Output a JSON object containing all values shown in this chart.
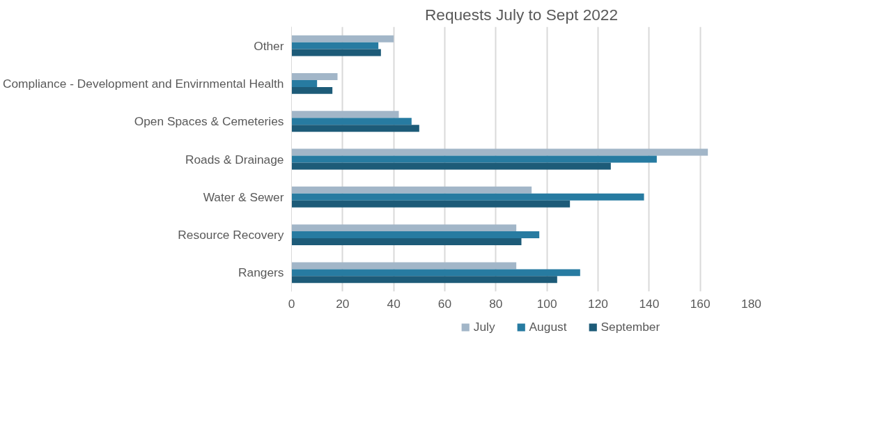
{
  "chart_data": {
    "type": "bar",
    "orientation": "horizontal",
    "title": "Requests July to Sept 2022",
    "categories": [
      "Other",
      "Compliance - Development and Envirnmental Health",
      "Open Spaces & Cemeteries",
      "Roads & Drainage",
      "Water & Sewer",
      "Resource Recovery",
      "Rangers"
    ],
    "series": [
      {
        "name": "July",
        "color": "#a2b6c8",
        "values": [
          40,
          18,
          42,
          163,
          94,
          88,
          88
        ]
      },
      {
        "name": "August",
        "color": "#277ba1",
        "values": [
          34,
          10,
          47,
          143,
          138,
          97,
          113
        ]
      },
      {
        "name": "September",
        "color": "#1d5b78",
        "values": [
          35,
          16,
          50,
          125,
          109,
          90,
          104
        ]
      }
    ],
    "xlim": [
      0,
      180
    ],
    "xticks": [
      0,
      20,
      40,
      60,
      80,
      100,
      120,
      140,
      160,
      180
    ],
    "grid": "x",
    "legend": "bottom"
  }
}
